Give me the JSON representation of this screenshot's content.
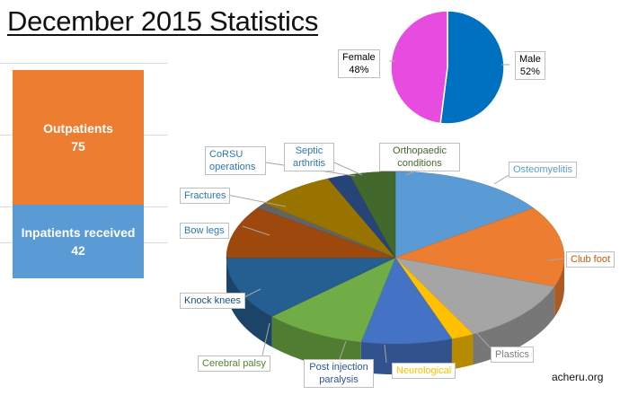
{
  "header": {
    "title": "December 2015 Statistics"
  },
  "watermark": "acheru.org",
  "chart_data": [
    {
      "type": "bar",
      "stacked": true,
      "categories": [
        ""
      ],
      "series": [
        {
          "name": "Inpatients received",
          "values": [
            42
          ],
          "color": "#5B9BD5"
        },
        {
          "name": "Outpatients",
          "values": [
            75
          ],
          "color": "#ED7D31"
        }
      ],
      "data_labels": [
        {
          "name": "Outpatients",
          "value": "75"
        },
        {
          "name": "Inpatients received",
          "value": "42"
        }
      ],
      "grid": true,
      "legend": "none"
    },
    {
      "type": "pie",
      "slices": [
        {
          "label": "Male",
          "value": 52,
          "display": "52%",
          "color": "#0070C0"
        },
        {
          "label": "Female",
          "value": 48,
          "display": "48%",
          "color": "#E84BE0"
        }
      ],
      "legend": "none"
    },
    {
      "type": "pie",
      "style": "3d",
      "slices": [
        {
          "label": "Osteomyelitis",
          "value": 14,
          "color": "#5B9BD5"
        },
        {
          "label": "Club foot",
          "value": 14,
          "color": "#ED7D31"
        },
        {
          "label": "Plastics",
          "value": 11,
          "color": "#A5A5A5"
        },
        {
          "label": "Neurological",
          "value": 2,
          "color": "#FFC000"
        },
        {
          "label": "Post injection paralysis",
          "value": 8,
          "color": "#4472C4"
        },
        {
          "label": "Cerebral palsy",
          "value": 9,
          "color": "#70AD47"
        },
        {
          "label": "Knock knees",
          "value": 11,
          "color": "#255E91"
        },
        {
          "label": "Bow legs",
          "value": 9,
          "color": "#9E480E"
        },
        {
          "label": "Fractures",
          "value": 1,
          "color": "#636363"
        },
        {
          "label": "CoRSU operations",
          "value": 7,
          "color": "#997300"
        },
        {
          "label": "Septic arthritis",
          "value": 2,
          "color": "#264478"
        },
        {
          "label": "Orthopaedic conditions",
          "value": 4,
          "color": "#43682B"
        }
      ],
      "legend": "none"
    }
  ]
}
